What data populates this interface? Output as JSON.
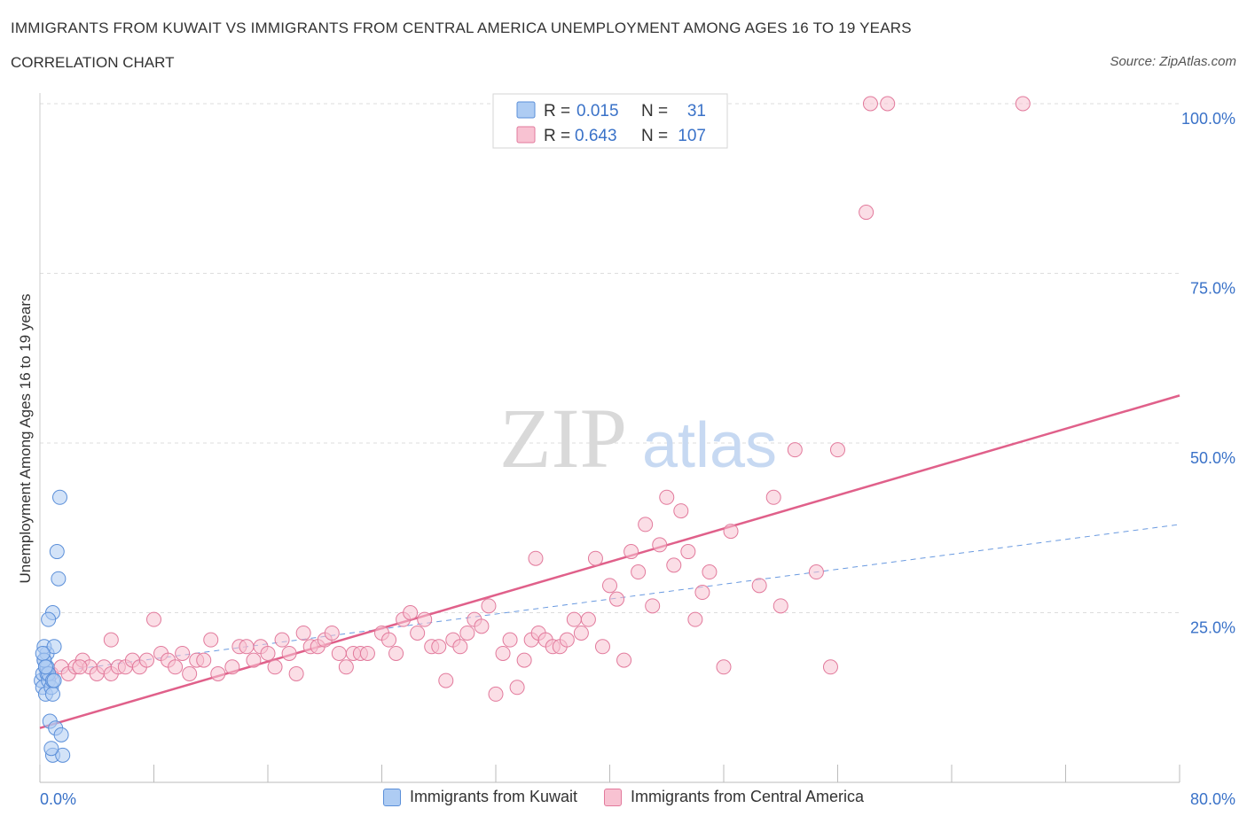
{
  "header": {
    "title": "IMMIGRANTS FROM KUWAIT VS IMMIGRANTS FROM CENTRAL AMERICA UNEMPLOYMENT AMONG AGES 16 TO 19 YEARS",
    "subtitle": "CORRELATION CHART",
    "source": "Source: ZipAtlas.com"
  },
  "watermark": {
    "zip": "ZIP",
    "atlas": "atlas"
  },
  "colors": {
    "kuwait_fill": "#aeccf3",
    "kuwait_stroke": "#5b8fd9",
    "central_fill": "#f8c2d2",
    "central_stroke": "#e27a9c",
    "central_line": "#e0608a",
    "kuwait_line": "#6a9ae0",
    "value_text": "#3a72c8",
    "grid": "#dddddd"
  },
  "stats_legend": [
    {
      "r_label": "R =",
      "r_value": "0.015",
      "n_label": "N =",
      "n_value": "31",
      "series": "kuwait"
    },
    {
      "r_label": "R =",
      "r_value": "0.643",
      "n_label": "N =",
      "n_value": "107",
      "series": "central"
    }
  ],
  "chart_data": {
    "type": "scatter",
    "title": "IMMIGRANTS FROM KUWAIT VS IMMIGRANTS FROM CENTRAL AMERICA UNEMPLOYMENT AMONG AGES 16 TO 19 YEARS",
    "ylabel": "Unemployment Among Ages 16 to 19 years",
    "xlabel": "",
    "xlim": [
      0,
      80
    ],
    "ylim": [
      0,
      100
    ],
    "x_tick_labels": [
      "0.0%",
      "80.0%"
    ],
    "y_tick_labels": [
      {
        "value": 25,
        "label": "25.0%"
      },
      {
        "value": 50,
        "label": "50.0%"
      },
      {
        "value": 75,
        "label": "75.0%"
      },
      {
        "value": 100,
        "label": "100.0%"
      }
    ],
    "grid": true,
    "series": [
      {
        "name": "Immigrants from Kuwait",
        "key": "kuwait",
        "points": [
          [
            0.1,
            15
          ],
          [
            0.2,
            16
          ],
          [
            0.3,
            18
          ],
          [
            0.4,
            17
          ],
          [
            0.5,
            19
          ],
          [
            0.3,
            20
          ],
          [
            0.2,
            14
          ],
          [
            0.5,
            16
          ],
          [
            0.6,
            15
          ],
          [
            0.4,
            13
          ],
          [
            0.8,
            14
          ],
          [
            0.9,
            13
          ],
          [
            1.0,
            20
          ],
          [
            1.2,
            34
          ],
          [
            1.3,
            30
          ],
          [
            1.4,
            42
          ],
          [
            0.9,
            25
          ],
          [
            0.6,
            24
          ],
          [
            0.7,
            9
          ],
          [
            1.1,
            8
          ],
          [
            1.5,
            7
          ],
          [
            0.9,
            4
          ],
          [
            1.6,
            4
          ],
          [
            0.8,
            5
          ],
          [
            0.5,
            17
          ],
          [
            0.3,
            18
          ],
          [
            0.2,
            19
          ],
          [
            0.6,
            16
          ],
          [
            0.9,
            15
          ],
          [
            0.4,
            17
          ],
          [
            1.0,
            15
          ]
        ],
        "trend": {
          "x0": 0,
          "y0": 16,
          "x1": 80,
          "y1": 38
        }
      },
      {
        "name": "Immigrants from Central America",
        "key": "central",
        "points": [
          [
            0.8,
            16
          ],
          [
            1.5,
            17
          ],
          [
            2.0,
            16
          ],
          [
            2.5,
            17
          ],
          [
            3.0,
            18
          ],
          [
            3.5,
            17
          ],
          [
            4.0,
            16
          ],
          [
            4.5,
            17
          ],
          [
            5.0,
            16
          ],
          [
            5.5,
            17
          ],
          [
            6.0,
            17
          ],
          [
            6.5,
            18
          ],
          [
            7.0,
            17
          ],
          [
            7.5,
            18
          ],
          [
            8.0,
            24
          ],
          [
            8.5,
            19
          ],
          [
            9.0,
            18
          ],
          [
            9.5,
            17
          ],
          [
            10.0,
            19
          ],
          [
            10.5,
            16
          ],
          [
            11.0,
            18
          ],
          [
            11.5,
            18
          ],
          [
            12.0,
            21
          ],
          [
            12.5,
            16
          ],
          [
            13.5,
            17
          ],
          [
            14.0,
            20
          ],
          [
            14.5,
            20
          ],
          [
            15.0,
            18
          ],
          [
            15.5,
            20
          ],
          [
            16.0,
            19
          ],
          [
            16.5,
            17
          ],
          [
            17.0,
            21
          ],
          [
            17.5,
            19
          ],
          [
            18.0,
            16
          ],
          [
            18.5,
            22
          ],
          [
            19.0,
            20
          ],
          [
            19.5,
            20
          ],
          [
            20.0,
            21
          ],
          [
            20.5,
            22
          ],
          [
            21.0,
            19
          ],
          [
            21.5,
            17
          ],
          [
            22.0,
            19
          ],
          [
            22.5,
            19
          ],
          [
            23.0,
            19
          ],
          [
            24.0,
            22
          ],
          [
            24.5,
            21
          ],
          [
            25.0,
            19
          ],
          [
            25.5,
            24
          ],
          [
            26.0,
            25
          ],
          [
            26.5,
            22
          ],
          [
            27.0,
            24
          ],
          [
            27.5,
            20
          ],
          [
            28.0,
            20
          ],
          [
            28.5,
            15
          ],
          [
            29.0,
            21
          ],
          [
            29.5,
            20
          ],
          [
            30.0,
            22
          ],
          [
            30.5,
            24
          ],
          [
            31.0,
            23
          ],
          [
            31.5,
            26
          ],
          [
            32.0,
            13
          ],
          [
            32.5,
            19
          ],
          [
            33.0,
            21
          ],
          [
            33.5,
            14
          ],
          [
            34.0,
            18
          ],
          [
            34.5,
            21
          ],
          [
            35.0,
            22
          ],
          [
            35.5,
            21
          ],
          [
            36.0,
            20
          ],
          [
            36.5,
            20
          ],
          [
            37.0,
            21
          ],
          [
            37.5,
            24
          ],
          [
            38.0,
            22
          ],
          [
            38.5,
            24
          ],
          [
            39.0,
            33
          ],
          [
            39.5,
            20
          ],
          [
            40.0,
            29
          ],
          [
            40.5,
            27
          ],
          [
            41.0,
            18
          ],
          [
            41.5,
            34
          ],
          [
            42.0,
            31
          ],
          [
            42.5,
            38
          ],
          [
            43.0,
            26
          ],
          [
            43.5,
            35
          ],
          [
            44.0,
            42
          ],
          [
            44.5,
            32
          ],
          [
            45.0,
            40
          ],
          [
            45.5,
            34
          ],
          [
            46.0,
            24
          ],
          [
            46.5,
            28
          ],
          [
            47.0,
            31
          ],
          [
            48.0,
            17
          ],
          [
            48.5,
            37
          ],
          [
            50.5,
            29
          ],
          [
            51.5,
            42
          ],
          [
            52.0,
            26
          ],
          [
            53.0,
            49
          ],
          [
            54.5,
            31
          ],
          [
            55.5,
            17
          ],
          [
            56.0,
            49
          ],
          [
            58.0,
            84
          ],
          [
            58.3,
            100
          ],
          [
            59.5,
            100
          ],
          [
            69.0,
            100
          ],
          [
            34.8,
            33
          ],
          [
            5.0,
            21
          ],
          [
            2.8,
            17
          ]
        ],
        "trend": {
          "x0": 0,
          "y0": 8,
          "x1": 80,
          "y1": 57
        }
      }
    ]
  },
  "legend_bottom": [
    {
      "label": "Immigrants from Kuwait",
      "series": "kuwait"
    },
    {
      "label": "Immigrants from Central America",
      "series": "central"
    }
  ]
}
